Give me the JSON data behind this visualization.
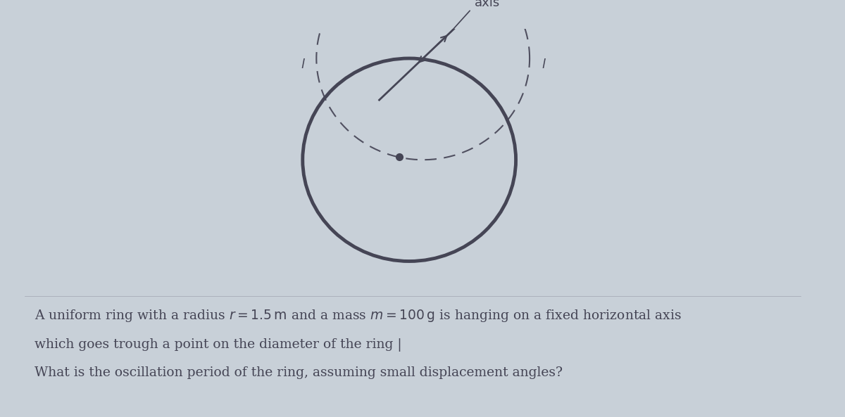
{
  "background_color": "#c8d0d8",
  "ring_color": "#454555",
  "ring_linewidth": 3.5,
  "axis_label": "axis",
  "axis_label_fontsize": 13,
  "cm_color": "#454555",
  "cm_size": 7,
  "dashed_circle_color": "#505060",
  "dashed_linewidth": 1.5,
  "text_line1": "A uniform ring with a radius $r = 1.5\\,\\mathrm{m}$ and a mass $m = 100\\,\\mathrm{g}$ is hanging on a fixed horizontal axis",
  "text_line2": "which goes trough a point on the diameter of the ring |",
  "text_line3": "What is the oscillation period of the ring, assuming small displacement angles?",
  "text_fontsize": 13.5,
  "tick_label": "l",
  "arrow_color": "#454555"
}
